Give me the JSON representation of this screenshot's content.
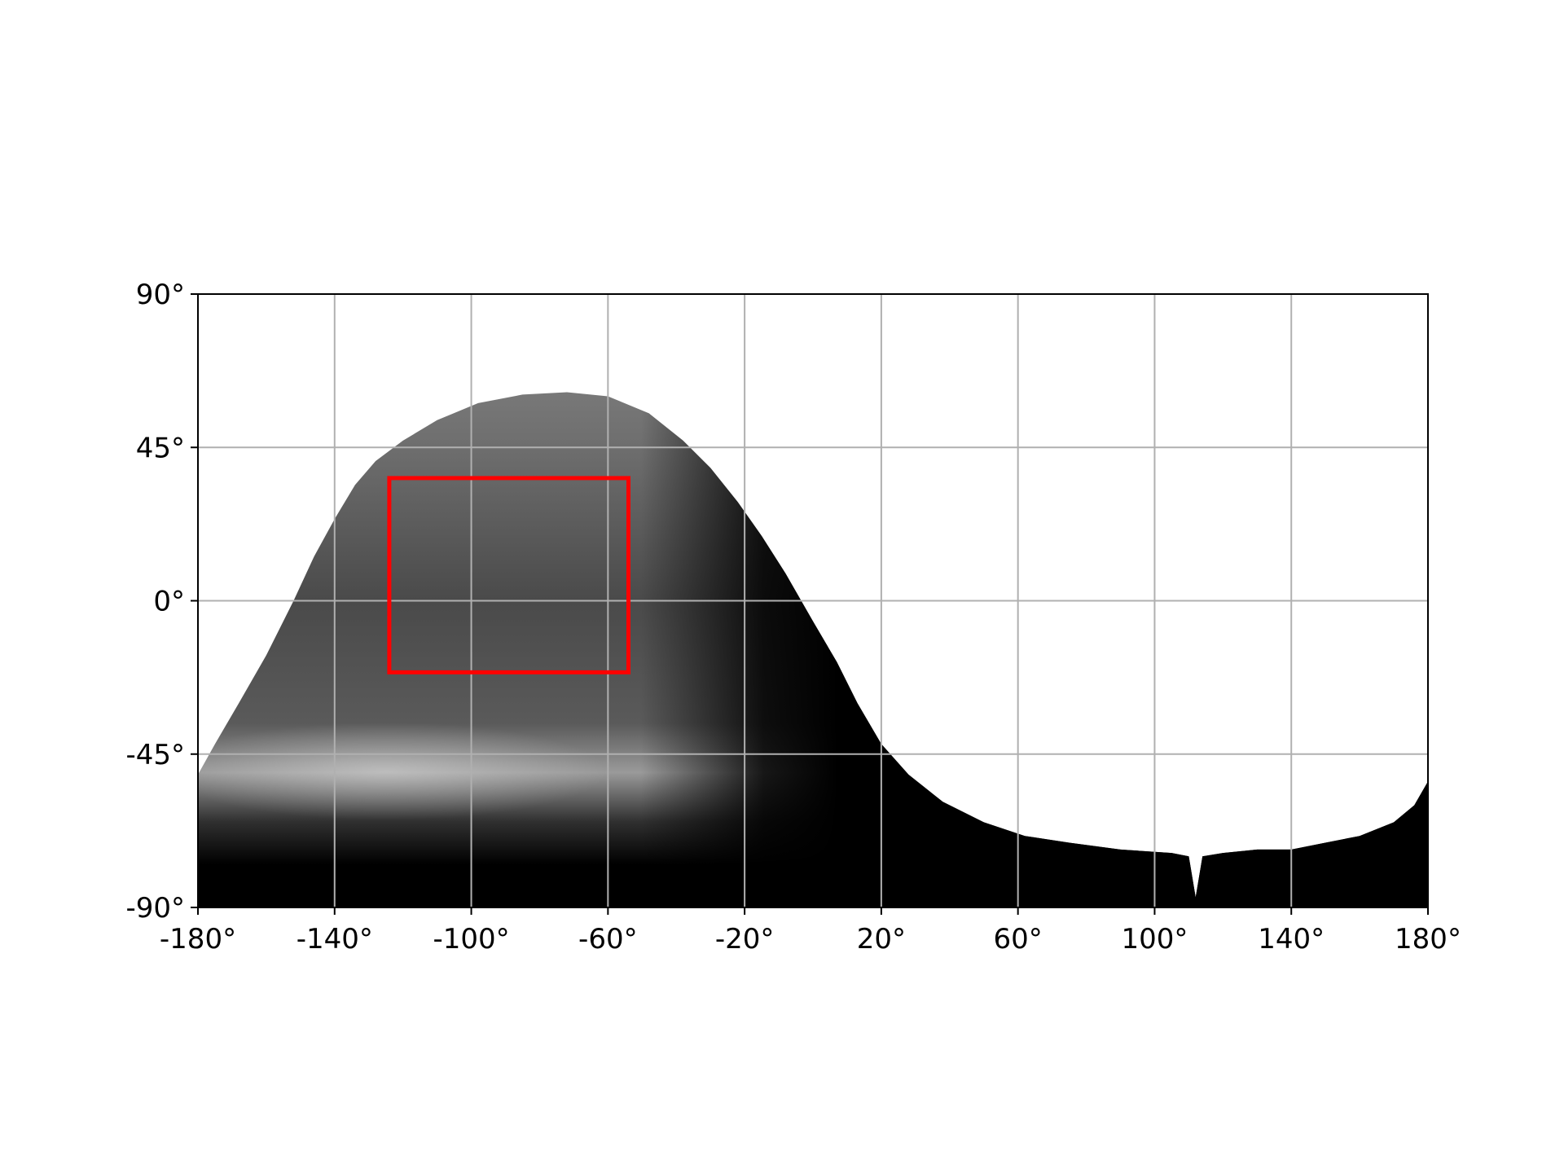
{
  "chart_data": {
    "type": "map",
    "projection": "equirectangular",
    "xlim": [
      -180,
      180
    ],
    "ylim": [
      -90,
      90
    ],
    "x_ticks": [
      -180,
      -140,
      -100,
      -60,
      -20,
      20,
      60,
      100,
      140,
      180
    ],
    "y_ticks": [
      -90,
      -45,
      0,
      45,
      90
    ],
    "x_tick_labels": [
      "-180°",
      "-140°",
      "-100°",
      "-60°",
      "-20°",
      "20°",
      "60°",
      "100°",
      "140°",
      "180°"
    ],
    "y_tick_labels": [
      "-90°",
      "-45°",
      "0°",
      "45°",
      "90°"
    ],
    "grid": true,
    "colormap": "grayscale",
    "background_color": "#ffffff",
    "grid_color": "#b0b0b0",
    "box_color": "#ff0000",
    "coverage_boundary": [
      [
        -180,
        -51
      ],
      [
        -175,
        -42
      ],
      [
        -168,
        -30
      ],
      [
        -160,
        -16
      ],
      [
        -152,
        0
      ],
      [
        -146,
        13
      ],
      [
        -140,
        24
      ],
      [
        -134,
        34
      ],
      [
        -128,
        41
      ],
      [
        -120,
        47
      ],
      [
        -110,
        53
      ],
      [
        -98,
        58
      ],
      [
        -85,
        60.5
      ],
      [
        -72,
        61.2
      ],
      [
        -60,
        60
      ],
      [
        -48,
        55
      ],
      [
        -38,
        47
      ],
      [
        -30,
        39
      ],
      [
        -22,
        29
      ],
      [
        -15,
        19
      ],
      [
        -8,
        8
      ],
      [
        0,
        -6
      ],
      [
        7,
        -18
      ],
      [
        13,
        -30
      ],
      [
        20,
        -42
      ],
      [
        28,
        -51
      ],
      [
        38,
        -59
      ],
      [
        50,
        -65
      ],
      [
        62,
        -69
      ],
      [
        75,
        -71
      ],
      [
        90,
        -73
      ],
      [
        105,
        -74
      ],
      [
        110,
        -75
      ],
      [
        112,
        -87
      ],
      [
        114,
        -75
      ],
      [
        120,
        -74
      ],
      [
        130,
        -73
      ],
      [
        140,
        -73
      ],
      [
        150,
        -71
      ],
      [
        160,
        -69
      ],
      [
        170,
        -65
      ],
      [
        176,
        -60
      ],
      [
        180,
        -53
      ]
    ],
    "highlight_box": {
      "lon_min": -124,
      "lon_max": -54,
      "lat_min": -21,
      "lat_max": 36
    }
  }
}
